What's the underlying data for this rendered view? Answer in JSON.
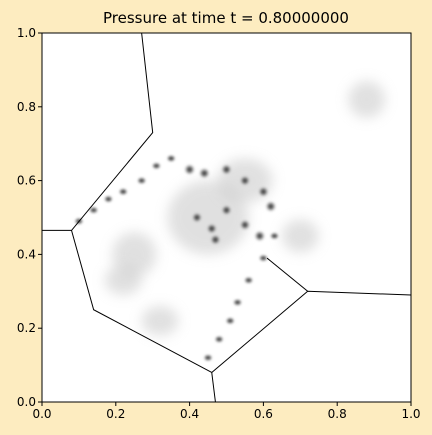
{
  "chart_data": {
    "type": "heatmap",
    "title": "Pressure at time t =     0.80000000",
    "xlabel": "",
    "ylabel": "",
    "xlim": [
      0.0,
      1.0
    ],
    "ylim": [
      0.0,
      1.0
    ],
    "x_ticks": [
      "0.0",
      "0.2",
      "0.4",
      "0.6",
      "0.8",
      "1.0"
    ],
    "y_ticks": [
      "0.0",
      "0.2",
      "0.4",
      "0.6",
      "0.8",
      "1.0"
    ],
    "colormap": "grayscale",
    "grid": false,
    "colors": {
      "figure_background": "#fdecc0",
      "plot_background": "#ffffff",
      "contour_line": "#000000"
    },
    "wave_front_lines": [
      [
        [
          0.0,
          0.465
        ],
        [
          0.08,
          0.465
        ],
        [
          0.3,
          0.73
        ],
        [
          0.27,
          1.0
        ]
      ],
      [
        [
          0.08,
          0.465
        ],
        [
          0.14,
          0.25
        ],
        [
          0.46,
          0.08
        ],
        [
          0.47,
          0.0
        ]
      ],
      [
        [
          0.46,
          0.08
        ],
        [
          0.72,
          0.3
        ],
        [
          1.0,
          0.29
        ]
      ],
      [
        [
          0.72,
          0.3
        ],
        [
          0.61,
          0.39
        ]
      ]
    ],
    "vortex_chains": [
      [
        [
          0.1,
          0.49
        ],
        [
          0.14,
          0.52
        ],
        [
          0.18,
          0.55
        ],
        [
          0.22,
          0.57
        ],
        [
          0.27,
          0.6
        ],
        [
          0.31,
          0.64
        ],
        [
          0.35,
          0.66
        ]
      ],
      [
        [
          0.45,
          0.12
        ],
        [
          0.48,
          0.17
        ],
        [
          0.51,
          0.22
        ],
        [
          0.53,
          0.27
        ],
        [
          0.56,
          0.33
        ],
        [
          0.6,
          0.39
        ],
        [
          0.63,
          0.45
        ]
      ]
    ],
    "vortex_cores": [
      [
        0.4,
        0.63
      ],
      [
        0.44,
        0.62
      ],
      [
        0.5,
        0.63
      ],
      [
        0.55,
        0.6
      ],
      [
        0.6,
        0.57
      ],
      [
        0.62,
        0.53
      ],
      [
        0.5,
        0.52
      ],
      [
        0.42,
        0.5
      ],
      [
        0.47,
        0.44
      ],
      [
        0.55,
        0.48
      ],
      [
        0.59,
        0.45
      ],
      [
        0.46,
        0.47
      ]
    ],
    "pressure_blobs": [
      [
        0.45,
        0.5,
        0.22,
        0.2
      ],
      [
        0.25,
        0.4,
        0.12,
        0.12
      ],
      [
        0.22,
        0.33,
        0.1,
        0.08
      ],
      [
        0.55,
        0.6,
        0.15,
        0.12
      ],
      [
        0.88,
        0.82,
        0.1,
        0.1
      ],
      [
        0.7,
        0.45,
        0.1,
        0.09
      ],
      [
        0.32,
        0.22,
        0.1,
        0.08
      ]
    ]
  }
}
